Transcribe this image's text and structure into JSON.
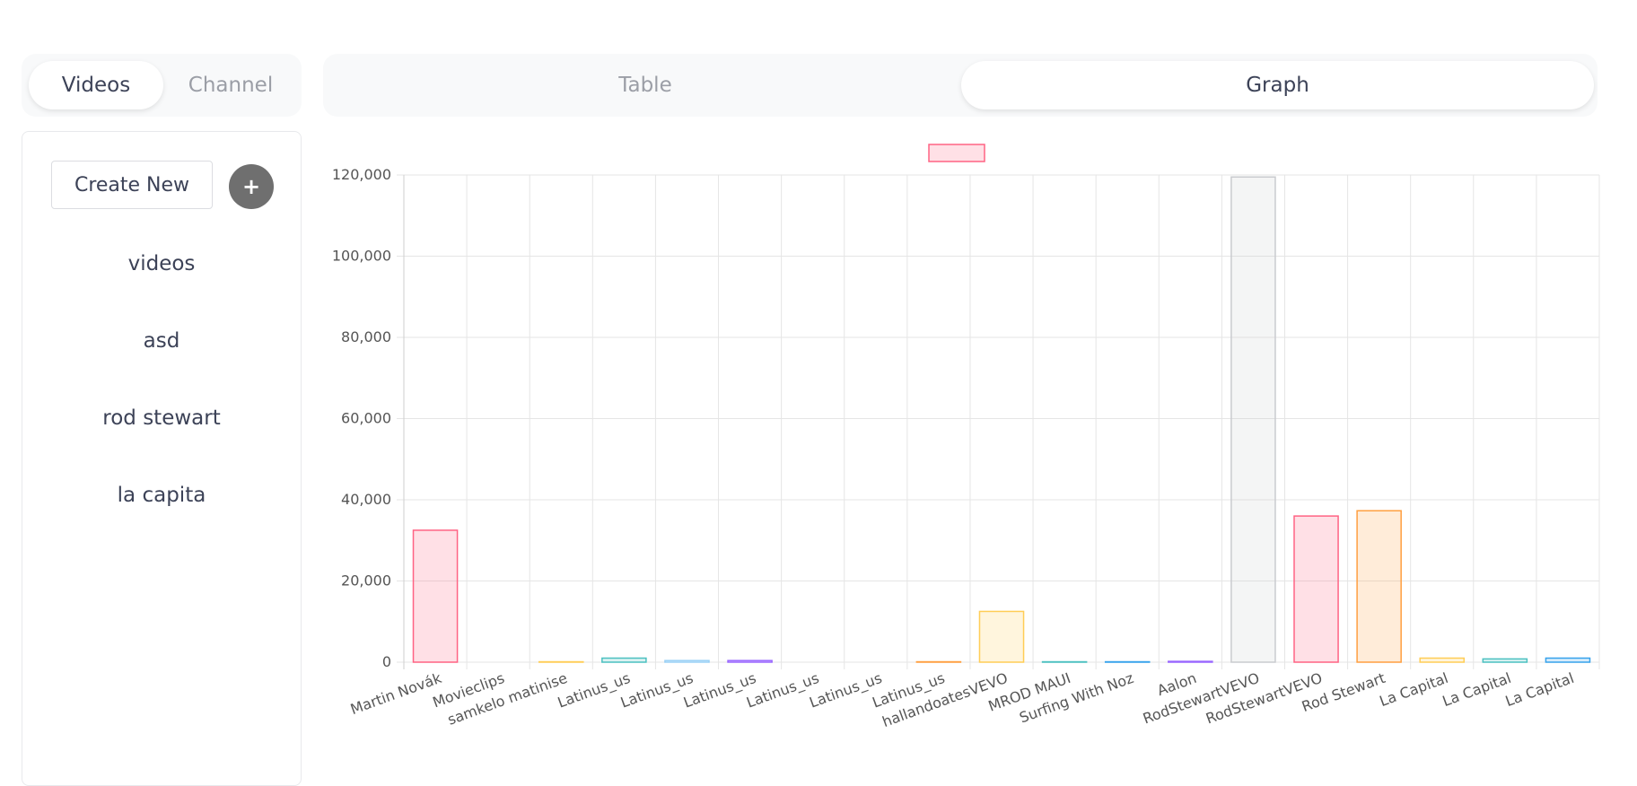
{
  "tabs": {
    "videos": "Videos",
    "channel": "Channel",
    "table": "Table",
    "graph": "Graph"
  },
  "sidebar": {
    "create_label": "Create New",
    "plus_label": "+",
    "items": [
      {
        "label": "videos"
      },
      {
        "label": "asd"
      },
      {
        "label": "rod stewart"
      },
      {
        "label": "la capita"
      }
    ]
  },
  "chart_data": {
    "type": "bar",
    "categories": [
      "Martin Novák",
      "Movieclips",
      "samkelo matinise",
      "Latinus_us",
      "Latinus_us",
      "Latinus_us",
      "Latinus_us",
      "Latinus_us",
      "Latinus_us",
      "hallandoatesVEVO",
      "MROD MAUI",
      "Surfing With Noz",
      "Aalon",
      "RodStewartVEVO",
      "RodStewartVEVO",
      "Rod Stewart",
      "La Capital",
      "La Capital",
      "La Capital"
    ],
    "values": [
      32500,
      0,
      100,
      1000,
      400,
      400,
      0,
      0,
      100,
      12500,
      100,
      100,
      200,
      119500,
      36000,
      37300,
      1000,
      800,
      1000
    ],
    "colors": [
      "#ff6384",
      "#36a2eb",
      "#ffcd56",
      "#4bc0c0",
      "#9ad0f5",
      "#9966ff",
      "#c9cbcf",
      "#ff6384",
      "#ff9f40",
      "#ffcd56",
      "#4bc0c0",
      "#36a2eb",
      "#9966ff",
      "#c9cbcf",
      "#ff6384",
      "#ff9f40",
      "#ffcd56",
      "#4bc0c0",
      "#36a2eb"
    ],
    "yticks": [
      "0",
      "20,000",
      "40,000",
      "60,000",
      "80,000",
      "100,000",
      "120,000"
    ],
    "ylim": [
      0,
      120000
    ],
    "legend_color": "#ff6384",
    "grid": true
  }
}
